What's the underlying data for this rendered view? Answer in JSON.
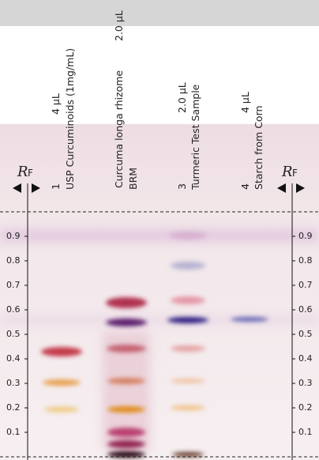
{
  "rf_label": {
    "symbol": "R",
    "subscript": "F"
  },
  "lanes": [
    {
      "number": "1",
      "volume": "4 µL",
      "sample": "USP Curcuminoids (1mg/mL)"
    },
    {
      "volume": "2.0 µL",
      "sample": "Curcuma longa rhizome",
      "sample_line2": "BRM"
    },
    {
      "number": "3",
      "volume": "2.0 µL",
      "sample": "Turmeric Test Sample"
    },
    {
      "number": "4",
      "volume": "4 µL",
      "sample": "Starch from Corn"
    }
  ],
  "rf_ticks": [
    0.9,
    0.8,
    0.7,
    0.6,
    0.5,
    0.4,
    0.3,
    0.2,
    0.1
  ]
}
